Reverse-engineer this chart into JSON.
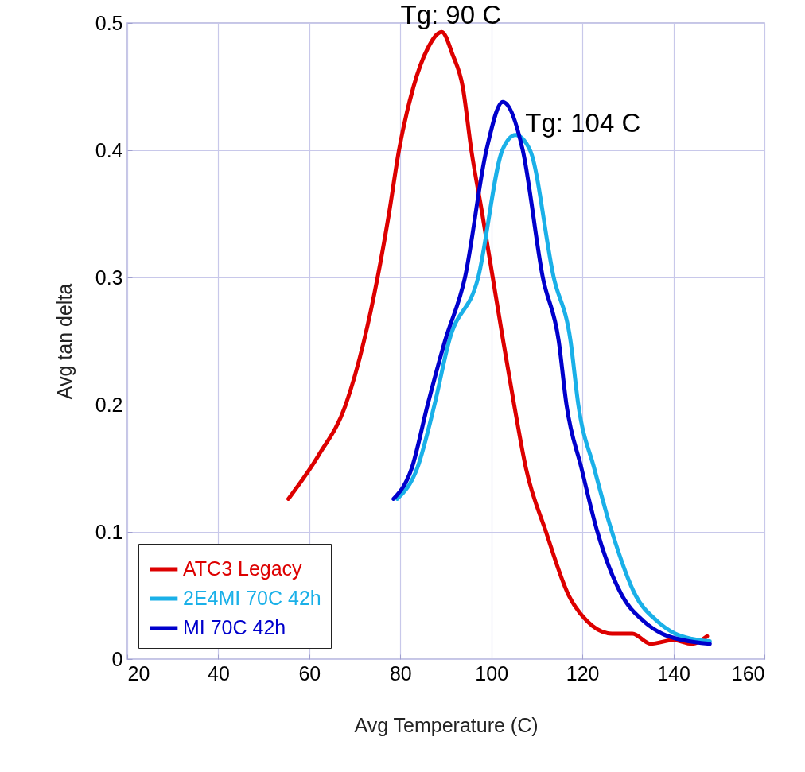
{
  "chart_data": {
    "type": "line",
    "xlabel": "Avg Temperature (C)",
    "ylabel": "Avg tan delta",
    "xlim": [
      20,
      160
    ],
    "ylim": [
      0,
      0.5
    ],
    "xticks": [
      20,
      40,
      60,
      80,
      100,
      120,
      140,
      160
    ],
    "yticks": [
      0,
      0.1,
      0.2,
      0.3,
      0.4,
      0.5
    ],
    "grid": true,
    "legend": "bottom left",
    "line_style": "solid",
    "marker": "none",
    "annotations": [
      {
        "text": "Tg: 90 C",
        "x": 89,
        "y": 0.493
      },
      {
        "text": "Tg: 104 C",
        "x": 105,
        "y": 0.412
      }
    ],
    "series": [
      {
        "name": "ATC3 Legacy",
        "color": "#dd0000",
        "x": [
          55.4,
          62,
          68,
          72,
          75,
          77.5,
          79.7,
          82.9,
          86,
          89.1,
          91.5,
          93.7,
          95.6,
          98,
          100.3,
          102.6,
          105,
          107.6,
          112,
          117,
          121,
          126.5,
          131,
          135,
          140,
          144,
          147.4
        ],
        "values": [
          0.126,
          0.16,
          0.2,
          0.25,
          0.3,
          0.35,
          0.4,
          0.45,
          0.48,
          0.493,
          0.475,
          0.45,
          0.4,
          0.35,
          0.3,
          0.25,
          0.2,
          0.15,
          0.1,
          0.05,
          0.03,
          0.02,
          0.02,
          0.012,
          0.015,
          0.012,
          0.018
        ]
      },
      {
        "name": "2E4MI 70C 42h",
        "color": "#1ab0e8",
        "x": [
          79.3,
          83.7,
          87.5,
          90.7,
          97.1,
          102.4,
          105.3,
          108.5,
          113.7,
          117.4,
          119.1,
          122.6,
          126.5,
          131.7,
          136.4,
          140.4,
          144,
          148
        ],
        "values": [
          0.126,
          0.15,
          0.2,
          0.25,
          0.3,
          0.4,
          0.412,
          0.4,
          0.3,
          0.25,
          0.2,
          0.15,
          0.1,
          0.05,
          0.03,
          0.02,
          0.016,
          0.014
        ]
      },
      {
        "name": "MI 70C 42h",
        "color": "#0000cc",
        "x": [
          78.5,
          82.5,
          86,
          89.8,
          94.2,
          98.9,
          102.5,
          106.9,
          111.3,
          114.8,
          116.5,
          119.8,
          123.3,
          128.7,
          133.4,
          137.5,
          142,
          148
        ],
        "values": [
          0.126,
          0.15,
          0.2,
          0.25,
          0.3,
          0.4,
          0.438,
          0.4,
          0.3,
          0.25,
          0.2,
          0.15,
          0.1,
          0.05,
          0.03,
          0.02,
          0.015,
          0.012
        ]
      }
    ]
  }
}
